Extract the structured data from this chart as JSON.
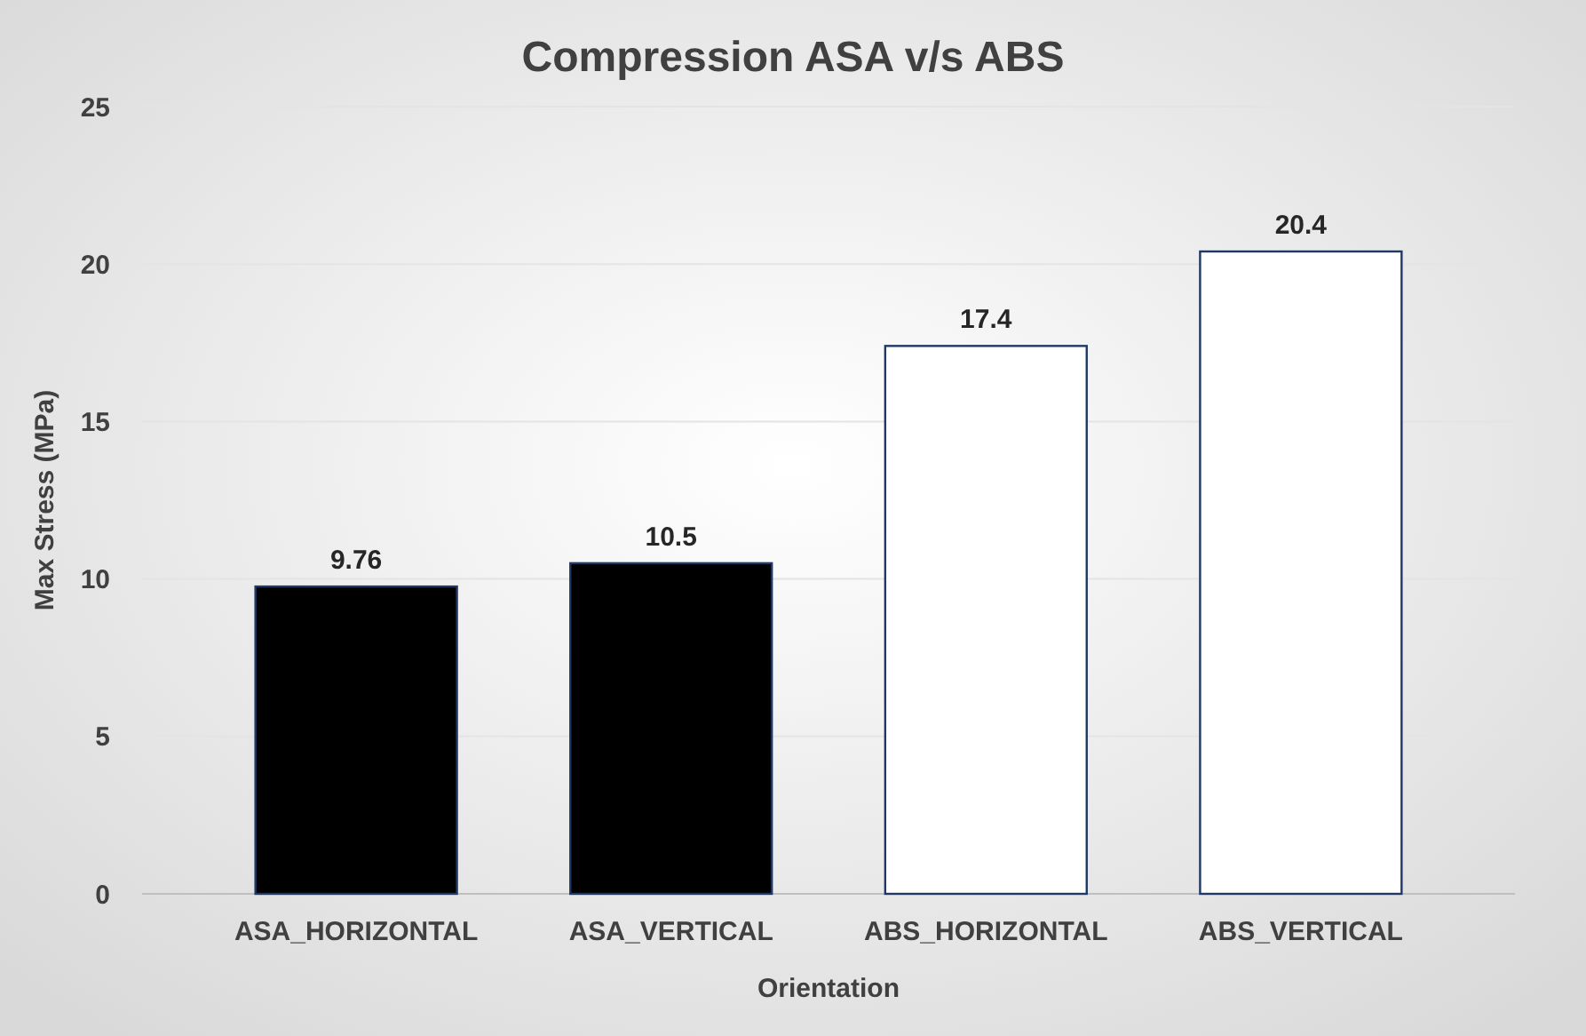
{
  "chart_data": {
    "type": "bar",
    "title": "Compression ASA v/s ABS",
    "xlabel": "Orientation",
    "ylabel": "Max Stress (MPa)",
    "categories": [
      "ASA_HORIZONTAL",
      "ASA_VERTICAL",
      "ABS_HORIZONTAL",
      "ABS_VERTICAL"
    ],
    "values": [
      9.76,
      10.5,
      17.4,
      20.4
    ],
    "colors": [
      "#000000",
      "#000000",
      "#ffffff",
      "#ffffff"
    ],
    "ylim": [
      0,
      25
    ],
    "yticks": [
      0,
      5,
      10,
      15,
      20,
      25
    ],
    "grid": "y",
    "data_labels": true
  }
}
